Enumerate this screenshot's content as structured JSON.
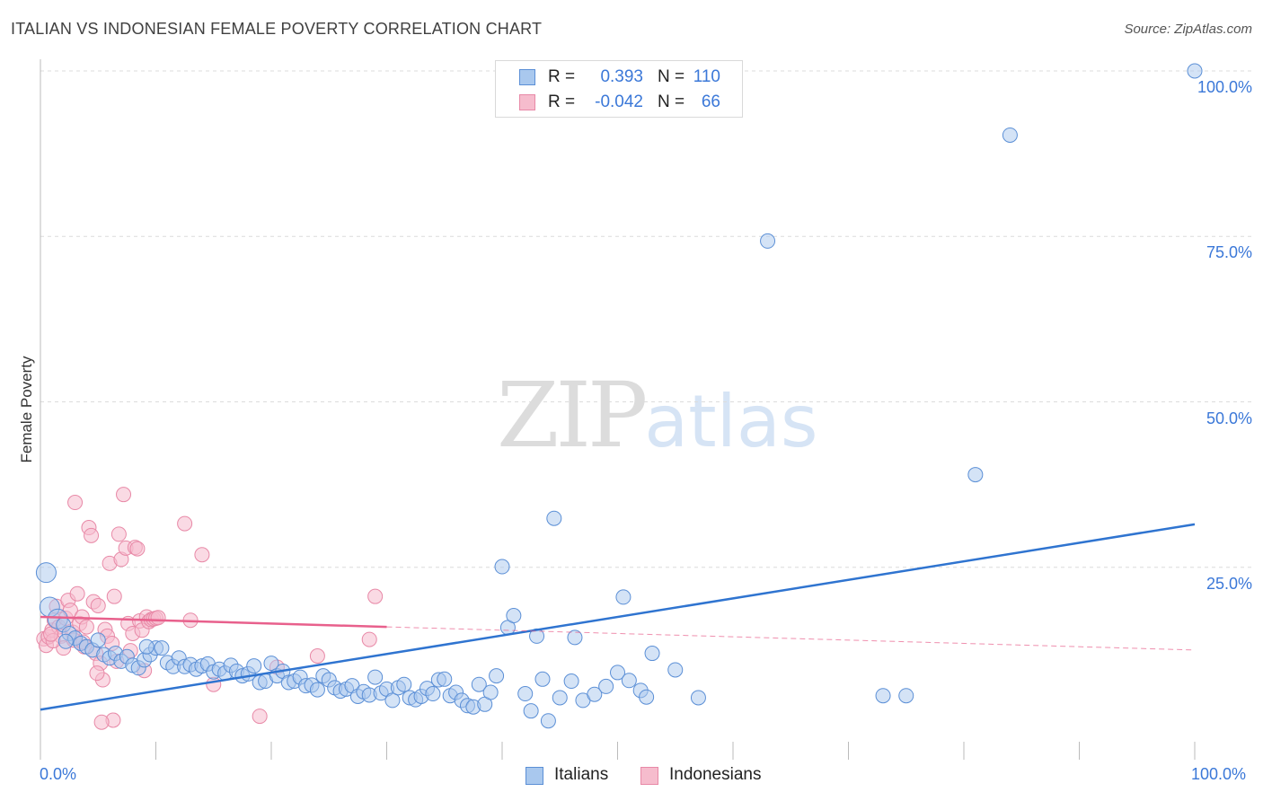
{
  "title": "ITALIAN VS INDONESIAN FEMALE POVERTY CORRELATION CHART",
  "source": "Source: ZipAtlas.com",
  "watermark": {
    "zip": "ZIP",
    "atlas": "atlas"
  },
  "legend": {
    "italians": {
      "r_label": "R =",
      "r_value": "0.393",
      "n_label": "N =",
      "n_value": "110"
    },
    "indonesians": {
      "r_label": "R =",
      "r_value": "-0.042",
      "n_label": "N =",
      "n_value": "66"
    }
  },
  "colors": {
    "italians_fill": "#a9c8ee",
    "italians_stroke": "#5b8fd6",
    "italians_line": "#2f74d0",
    "indonesians_fill": "#f6bccd",
    "indonesians_stroke": "#e889a7",
    "indonesians_line": "#e8608c",
    "grid": "#dcdcdc",
    "axis_text": "#3b78d8"
  },
  "chart_data": {
    "type": "scatter",
    "title": "ITALIAN VS INDONESIAN FEMALE POVERTY CORRELATION CHART",
    "xlabel": "",
    "ylabel": "Female Poverty",
    "xlim": [
      0,
      100
    ],
    "ylim": [
      0,
      100
    ],
    "x_tick_labels": [
      "0.0%",
      "100.0%"
    ],
    "y_tick_values": [
      25,
      50,
      75,
      100
    ],
    "y_tick_labels": [
      "25.0%",
      "50.0%",
      "75.0%",
      "100.0%"
    ],
    "legend_labels": [
      "Italians",
      "Indonesians"
    ],
    "series": [
      {
        "name": "Italians",
        "r": 0.393,
        "n": 110,
        "trend": {
          "x": [
            0,
            100
          ],
          "y": [
            3.5,
            31.5
          ],
          "style": "solid"
        },
        "points": [
          [
            0.5,
            24.2,
            2
          ],
          [
            0.8,
            19.0,
            2
          ],
          [
            1.5,
            17.2,
            2
          ],
          [
            2,
            16.3,
            1
          ],
          [
            2.5,
            15.0,
            1
          ],
          [
            3,
            14.3,
            1
          ],
          [
            3.5,
            13.5,
            1
          ],
          [
            4,
            13.0,
            1
          ],
          [
            4.5,
            12.5,
            1
          ],
          [
            5,
            14.0,
            1
          ],
          [
            5.5,
            11.8,
            1
          ],
          [
            6,
            11.3,
            1
          ],
          [
            6.5,
            12.0,
            1
          ],
          [
            7,
            10.8,
            1
          ],
          [
            7.5,
            11.5,
            1
          ],
          [
            8,
            10.2,
            1
          ],
          [
            8.5,
            9.8,
            1
          ],
          [
            9,
            11.0,
            1
          ],
          [
            9.5,
            11.8,
            1
          ],
          [
            10,
            12.8,
            1
          ],
          [
            10.5,
            12.8,
            1
          ],
          [
            11,
            10.6,
            1
          ],
          [
            11.5,
            10.0,
            1
          ],
          [
            12,
            11.3,
            1
          ],
          [
            12.5,
            10.0,
            1
          ],
          [
            13,
            10.3,
            1
          ],
          [
            13.5,
            9.6,
            1
          ],
          [
            14,
            10.1,
            1
          ],
          [
            14.5,
            10.4,
            1
          ],
          [
            15,
            9.2,
            1
          ],
          [
            15.5,
            9.6,
            1
          ],
          [
            16,
            9.0,
            1
          ],
          [
            16.5,
            10.2,
            1
          ],
          [
            17,
            9.3,
            1
          ],
          [
            17.5,
            8.6,
            1
          ],
          [
            18,
            8.9,
            1
          ],
          [
            18.5,
            10.1,
            1
          ],
          [
            19,
            7.6,
            1
          ],
          [
            19.5,
            7.8,
            1
          ],
          [
            20,
            10.5,
            1
          ],
          [
            20.5,
            8.6,
            1
          ],
          [
            21,
            9.3,
            1
          ],
          [
            21.5,
            7.6,
            1
          ],
          [
            22,
            7.8,
            1
          ],
          [
            22.5,
            8.4,
            1
          ],
          [
            23,
            7.1,
            1
          ],
          [
            23.5,
            7.2,
            1
          ],
          [
            24,
            6.5,
            1
          ],
          [
            24.5,
            8.6,
            1
          ],
          [
            25,
            8.0,
            1
          ],
          [
            25.5,
            6.8,
            1
          ],
          [
            26,
            6.3,
            1
          ],
          [
            26.5,
            6.6,
            1
          ],
          [
            27,
            7.1,
            1
          ],
          [
            27.5,
            5.5,
            1
          ],
          [
            28,
            6.2,
            1
          ],
          [
            28.5,
            5.7,
            1
          ],
          [
            29,
            8.4,
            1
          ],
          [
            29.5,
            6.0,
            1
          ],
          [
            30,
            6.6,
            1
          ],
          [
            30.5,
            4.9,
            1
          ],
          [
            31,
            6.8,
            1
          ],
          [
            31.5,
            7.3,
            1
          ],
          [
            32,
            5.3,
            1
          ],
          [
            32.5,
            5.0,
            1
          ],
          [
            33,
            5.5,
            1
          ],
          [
            33.5,
            6.7,
            1
          ],
          [
            34,
            5.9,
            1
          ],
          [
            34.5,
            8.0,
            1
          ],
          [
            35,
            8.1,
            1
          ],
          [
            35.5,
            5.6,
            1
          ],
          [
            36,
            6.1,
            1
          ],
          [
            36.5,
            4.9,
            1
          ],
          [
            37,
            4.1,
            1
          ],
          [
            37.5,
            3.9,
            1
          ],
          [
            38,
            7.3,
            1
          ],
          [
            38.5,
            4.3,
            1
          ],
          [
            39,
            6.1,
            1
          ],
          [
            39.5,
            8.6,
            1
          ],
          [
            40,
            25.1,
            1
          ],
          [
            40.5,
            15.9,
            1
          ],
          [
            41,
            17.7,
            1
          ],
          [
            42,
            5.9,
            1
          ],
          [
            42.5,
            3.3,
            1
          ],
          [
            43,
            14.6,
            1
          ],
          [
            43.5,
            8.1,
            1
          ],
          [
            44,
            1.8,
            1
          ],
          [
            44.5,
            32.4,
            1
          ],
          [
            45,
            5.3,
            1
          ],
          [
            46,
            7.8,
            1
          ],
          [
            46.3,
            14.4,
            1
          ],
          [
            47,
            4.9,
            1
          ],
          [
            48,
            5.8,
            1
          ],
          [
            49,
            7.0,
            1
          ],
          [
            50,
            9.1,
            1
          ],
          [
            50.5,
            20.5,
            1
          ],
          [
            51,
            7.9,
            1
          ],
          [
            52,
            6.4,
            1
          ],
          [
            52.5,
            5.4,
            1
          ],
          [
            53,
            12.0,
            1
          ],
          [
            55,
            9.5,
            1
          ],
          [
            57,
            5.3,
            1
          ],
          [
            73,
            5.6,
            1
          ],
          [
            75,
            5.6,
            1
          ],
          [
            81,
            39.0,
            1
          ],
          [
            84,
            90.3,
            1
          ],
          [
            63,
            74.3,
            1
          ],
          [
            100,
            100.0,
            1
          ],
          [
            2.2,
            13.8,
            1
          ],
          [
            9.2,
            13.0,
            1
          ]
        ]
      },
      {
        "name": "Indonesians",
        "r": -0.042,
        "n": 66,
        "trend": {
          "x": [
            0,
            30
          ],
          "y": [
            17.5,
            16.0
          ],
          "style": "solid",
          "extended": {
            "x": [
              30,
              100
            ],
            "y": [
              16.0,
              12.5
            ],
            "style": "dashed"
          }
        },
        "points": [
          [
            0.3,
            14.2
          ],
          [
            0.5,
            13.2
          ],
          [
            0.7,
            14.5
          ],
          [
            1,
            15.5
          ],
          [
            1.2,
            17.0
          ],
          [
            1.4,
            19.1
          ],
          [
            1.6,
            16.0
          ],
          [
            1.8,
            14.6
          ],
          [
            2,
            12.8
          ],
          [
            2.2,
            17.3
          ],
          [
            2.4,
            20.0
          ],
          [
            2.6,
            18.5
          ],
          [
            2.8,
            15.2
          ],
          [
            3,
            34.8
          ],
          [
            3.2,
            21.0
          ],
          [
            3.4,
            16.5
          ],
          [
            3.6,
            17.5
          ],
          [
            3.8,
            13.0
          ],
          [
            4,
            16.0
          ],
          [
            4.2,
            31.0
          ],
          [
            4.4,
            29.8
          ],
          [
            4.6,
            19.8
          ],
          [
            4.8,
            12.0
          ],
          [
            5,
            19.2
          ],
          [
            5.2,
            10.5
          ],
          [
            5.4,
            8.0
          ],
          [
            5.6,
            15.6
          ],
          [
            5.8,
            14.6
          ],
          [
            6,
            25.6
          ],
          [
            6.2,
            13.5
          ],
          [
            6.4,
            20.6
          ],
          [
            6.6,
            10.8
          ],
          [
            6.8,
            30.0
          ],
          [
            7,
            26.2
          ],
          [
            7.2,
            36.0
          ],
          [
            7.4,
            27.9
          ],
          [
            7.6,
            16.5
          ],
          [
            7.8,
            12.4
          ],
          [
            8,
            15.0
          ],
          [
            8.2,
            28.0
          ],
          [
            8.4,
            27.8
          ],
          [
            8.6,
            16.9
          ],
          [
            8.8,
            15.5
          ],
          [
            9,
            9.4
          ],
          [
            9.2,
            17.5
          ],
          [
            9.4,
            16.8
          ],
          [
            9.6,
            17.1
          ],
          [
            9.8,
            17.2
          ],
          [
            10,
            17.3
          ],
          [
            10.2,
            17.4
          ],
          [
            12.5,
            31.6
          ],
          [
            13,
            17.0
          ],
          [
            14,
            26.9
          ],
          [
            15,
            7.3
          ],
          [
            19,
            2.5
          ],
          [
            20.5,
            9.9
          ],
          [
            24,
            11.6
          ],
          [
            28.5,
            14.1
          ],
          [
            29,
            20.6
          ],
          [
            1.1,
            13.9
          ],
          [
            6.3,
            1.9
          ],
          [
            5.3,
            1.6
          ],
          [
            0.9,
            14.9
          ],
          [
            2.9,
            14.0
          ],
          [
            4.9,
            9.0
          ],
          [
            3.7,
            13.7
          ]
        ]
      }
    ]
  }
}
